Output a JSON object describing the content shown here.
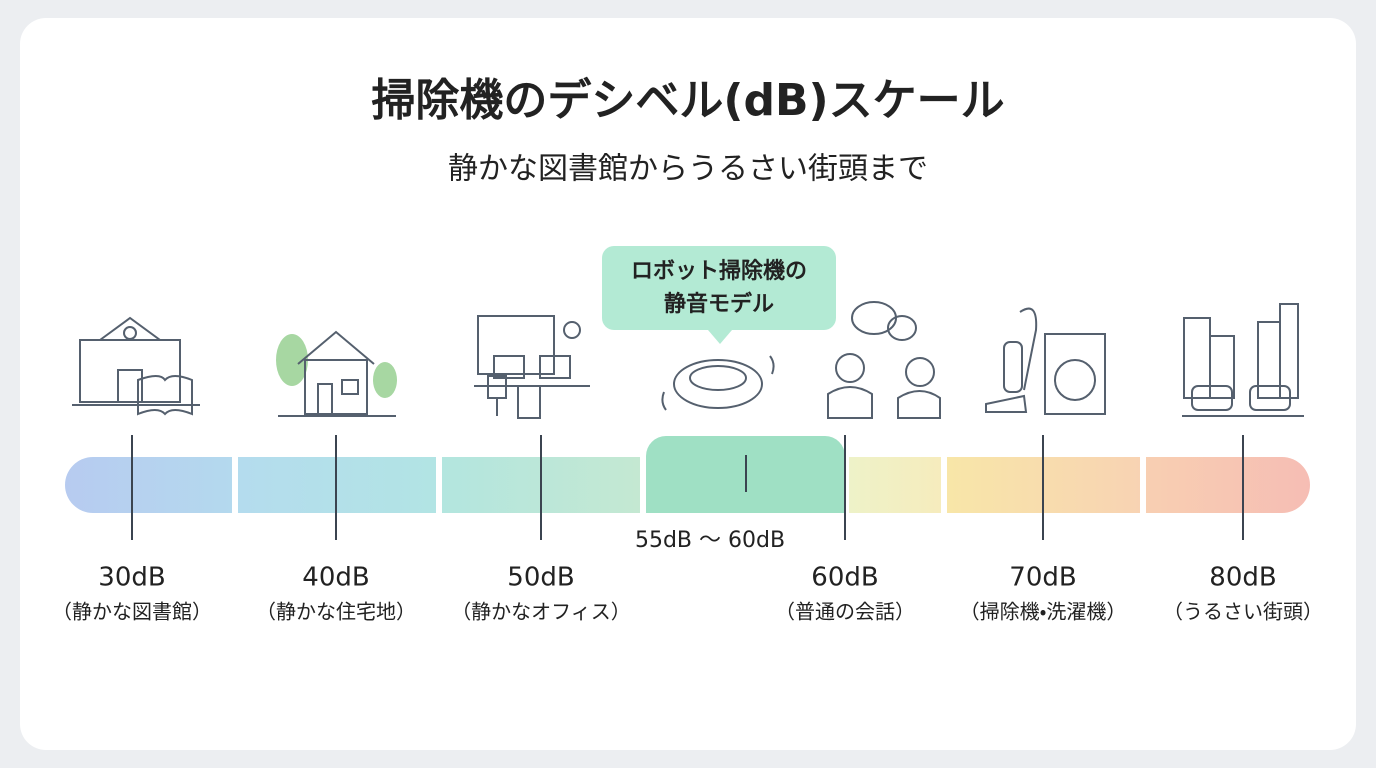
{
  "header": {
    "title": "掃除機のデシベル(dB)スケール",
    "subtitle": "静かな図書館からうるさい街頭まで"
  },
  "callout": {
    "lines": [
      "ロボット掃除機の",
      "静音モデル"
    ]
  },
  "range_label": "55dB 〜 60dB",
  "levels": [
    {
      "label": "30dB",
      "caption": "（静かな図書館）"
    },
    {
      "label": "40dB",
      "caption": "（静かな住宅地）"
    },
    {
      "label": "50dB",
      "caption": "（静かなオフィス）"
    },
    {
      "label": "60dB",
      "caption": "（普通の会話）"
    },
    {
      "label": "70dB",
      "caption": "（掃除機・洗濯機）"
    },
    {
      "label": "80dB",
      "caption": "（うるさい街頭）"
    }
  ]
}
